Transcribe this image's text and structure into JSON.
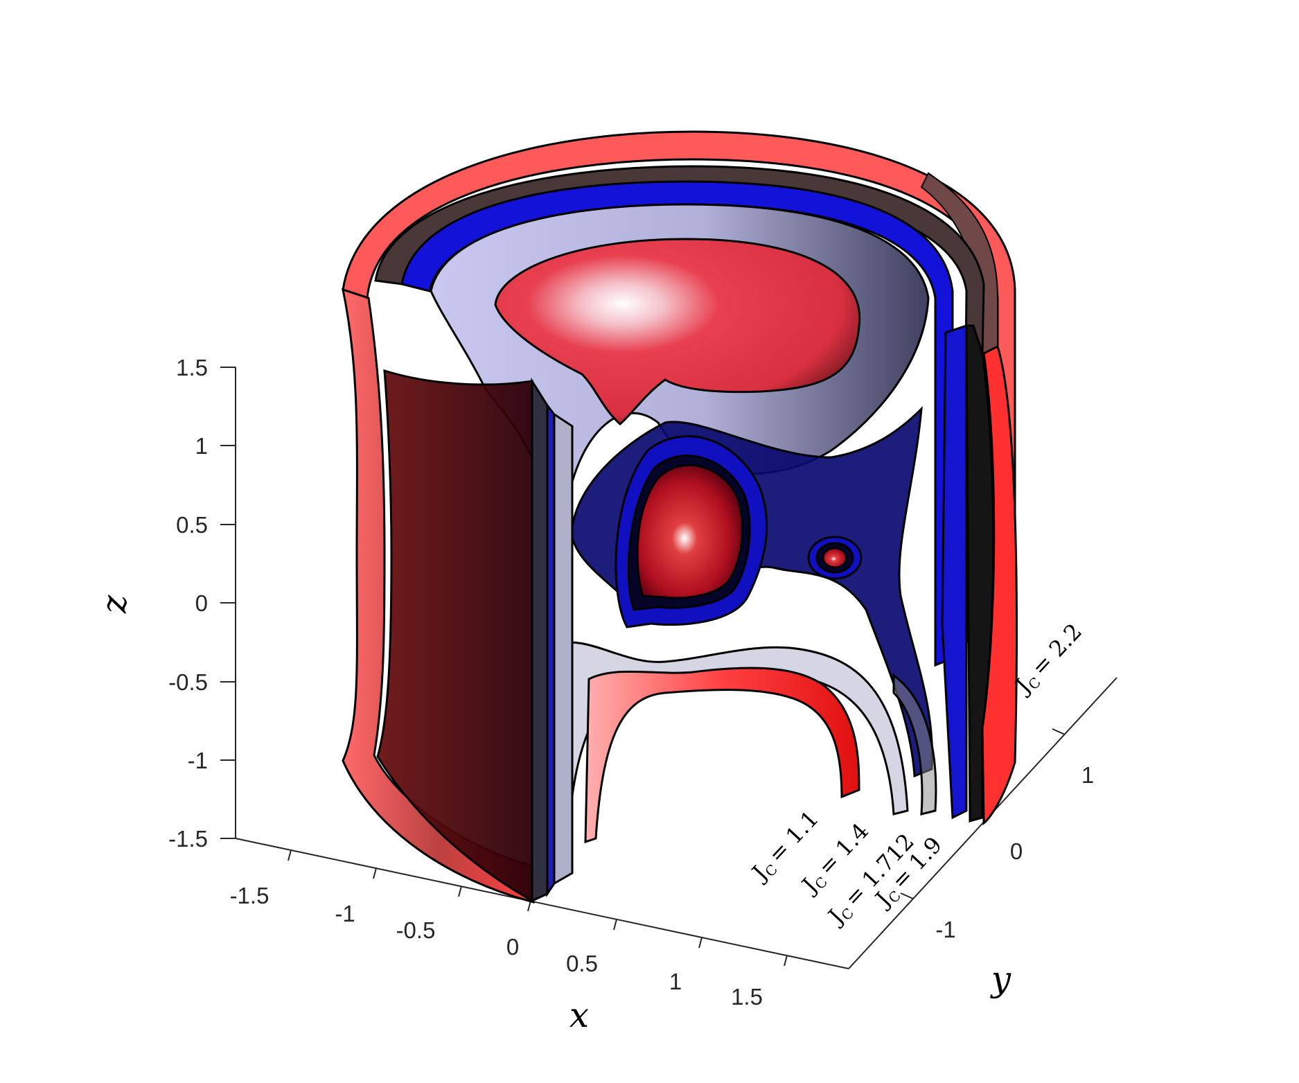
{
  "chart_data": {
    "type": "surface3d",
    "title": "",
    "xlabel": "x",
    "ylabel": "y",
    "zlabel": "z",
    "xlim": [
      -1.8,
      1.8
    ],
    "ylim": [
      -1.8,
      1.8
    ],
    "zlim": [
      -1.5,
      1.5
    ],
    "x_ticks": [
      "-1.5",
      "-1",
      "-0.5",
      "0",
      "0.5",
      "1",
      "1.5"
    ],
    "y_ticks": [
      "-1",
      "0",
      "1"
    ],
    "z_ticks": [
      "1.5",
      "1",
      "0.5",
      "0",
      "-0.5",
      "-1",
      "-1.5"
    ],
    "series": [
      {
        "name": "J_C = 1.1",
        "label": "J",
        "sub": "C",
        "value": "= 1.1",
        "color": "#e8202a"
      },
      {
        "name": "J_C = 1.4",
        "label": "J",
        "sub": "C",
        "value": "= 1.4",
        "color": "#c8c8d8"
      },
      {
        "name": "J_C = 1.712",
        "label": "J",
        "sub": "C",
        "value": "= 1.712",
        "color": "#1010d0"
      },
      {
        "name": "J_C = 1.9",
        "label": "J",
        "sub": "C",
        "value": "= 1.9",
        "color": "#404040"
      },
      {
        "name": "J_C = 2.2",
        "label": "J",
        "sub": "C",
        "value": "= 2.2",
        "color": "#e8202a"
      }
    ]
  }
}
